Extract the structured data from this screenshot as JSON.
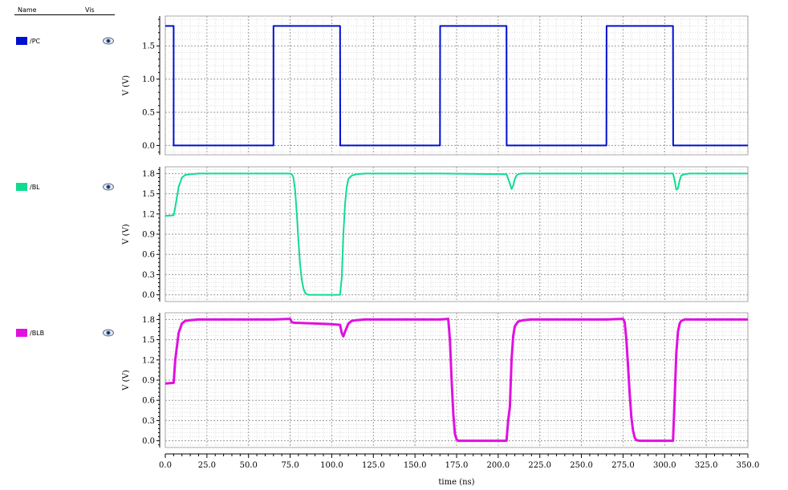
{
  "legend": {
    "name_header": "Name",
    "vis_header": "Vis",
    "signals": [
      {
        "label": "/PC",
        "color": "#0010d0",
        "icon": "eye-icon"
      },
      {
        "label": "/BL",
        "color": "#10dc90",
        "icon": "eye-icon"
      },
      {
        "label": "/BLB",
        "color": "#e010e0",
        "icon": "eye-icon"
      }
    ]
  },
  "chart_data": {
    "type": "line",
    "xlabel": "time (ns)",
    "xlim": [
      0,
      350
    ],
    "xticks": [
      "0.0",
      "25.0",
      "50.0",
      "75.0",
      "100.0",
      "125.0",
      "150.0",
      "175.0",
      "200.0",
      "225.0",
      "250.0",
      "275.0",
      "300.0",
      "325.0",
      "350.0"
    ],
    "grid": true,
    "panels": [
      {
        "series_name": "/PC",
        "ylabel": "V (V)",
        "ylim": [
          -0.14,
          1.95
        ],
        "yticks": [
          "0.0",
          "0.5",
          "1.0",
          "1.5"
        ],
        "color": "#0010d0",
        "x": [
          0,
          4,
          4,
          5,
          5,
          65,
          65,
          105,
          65.1,
          105,
          105.1,
          165,
          165.1,
          205,
          205.1,
          265,
          265.1,
          305,
          305.1,
          350
        ],
        "y": [
          1.8,
          1.8,
          1.8,
          1.8,
          0,
          0,
          1.8,
          1.8,
          1.8,
          1.8,
          0,
          0,
          1.8,
          1.8,
          0,
          0,
          1.8,
          1.8,
          0,
          0
        ]
      },
      {
        "series_name": "/BL",
        "ylabel": "V (V)",
        "ylim": [
          -0.1,
          1.9
        ],
        "yticks": [
          "0.0",
          "0.3",
          "0.6",
          "0.9",
          "1.2",
          "1.5",
          "1.8"
        ],
        "color": "#10dc90",
        "x": [
          0,
          5,
          6,
          8,
          10,
          12,
          15,
          20,
          65,
          75,
          76,
          77,
          78,
          79,
          80,
          81,
          82,
          83,
          84,
          85,
          86,
          88,
          92,
          100,
          105,
          106,
          107,
          108,
          109,
          110,
          112,
          115,
          120,
          165,
          205,
          206,
          207,
          208,
          209,
          210,
          211,
          212,
          214,
          220,
          305,
          306,
          307,
          308,
          309,
          310,
          312,
          315,
          320,
          350
        ],
        "y": [
          1.17,
          1.18,
          1.3,
          1.6,
          1.74,
          1.78,
          1.79,
          1.8,
          1.8,
          1.8,
          1.79,
          1.74,
          1.55,
          1.2,
          0.8,
          0.45,
          0.22,
          0.09,
          0.03,
          0.01,
          0,
          0,
          0,
          0,
          0,
          0.25,
          0.9,
          1.35,
          1.6,
          1.72,
          1.77,
          1.79,
          1.8,
          1.8,
          1.79,
          1.72,
          1.65,
          1.57,
          1.62,
          1.72,
          1.77,
          1.79,
          1.8,
          1.8,
          1.8,
          1.7,
          1.56,
          1.58,
          1.7,
          1.77,
          1.79,
          1.8,
          1.8,
          1.8
        ]
      },
      {
        "series_name": "/BLB",
        "ylabel": "V (V)",
        "ylim": [
          -0.1,
          1.9
        ],
        "yticks": [
          "0.0",
          "0.3",
          "0.6",
          "0.9",
          "1.2",
          "1.5",
          "1.8"
        ],
        "color": "#e010e0",
        "x": [
          0,
          5,
          6,
          8,
          10,
          12,
          15,
          20,
          65,
          75,
          76,
          78,
          80,
          90,
          100,
          105,
          106,
          107,
          108,
          110,
          112,
          115,
          120,
          165,
          170,
          171,
          172,
          173,
          174,
          175,
          176,
          177,
          178,
          180,
          190,
          200,
          205,
          206,
          207,
          208,
          209,
          210,
          212,
          215,
          220,
          265,
          275,
          276,
          277,
          278,
          279,
          280,
          281,
          282,
          283,
          285,
          290,
          300,
          305,
          306,
          307,
          308,
          309,
          310,
          312,
          315,
          320,
          350
        ],
        "y": [
          0.85,
          0.86,
          1.2,
          1.6,
          1.74,
          1.78,
          1.79,
          1.8,
          1.8,
          1.81,
          1.76,
          1.75,
          1.75,
          1.74,
          1.73,
          1.72,
          1.6,
          1.55,
          1.62,
          1.74,
          1.78,
          1.79,
          1.8,
          1.8,
          1.81,
          1.5,
          0.9,
          0.4,
          0.1,
          0.02,
          0,
          0,
          0,
          0,
          0,
          0,
          0,
          0.3,
          0.5,
          1.2,
          1.55,
          1.7,
          1.77,
          1.79,
          1.8,
          1.8,
          1.81,
          1.76,
          1.5,
          1.1,
          0.7,
          0.35,
          0.15,
          0.05,
          0.01,
          0,
          0,
          0,
          0,
          0.6,
          1.3,
          1.62,
          1.74,
          1.78,
          1.8,
          1.8,
          1.8,
          1.8
        ]
      }
    ]
  }
}
